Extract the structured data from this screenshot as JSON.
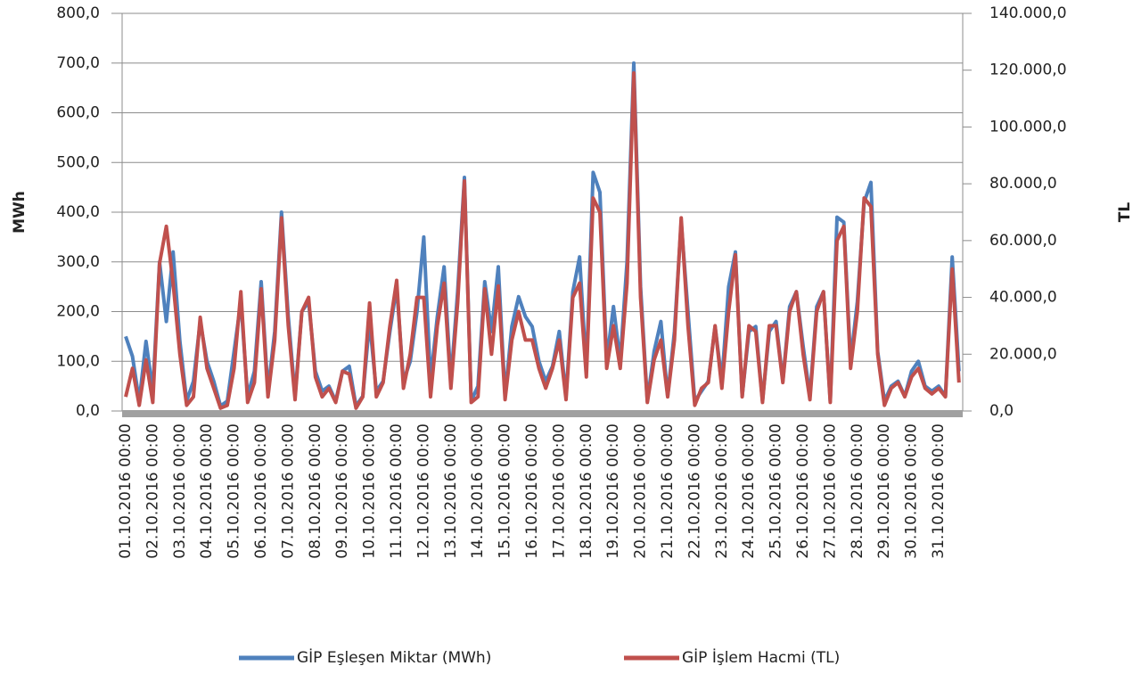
{
  "chart_data": {
    "type": "line",
    "y_label": "MWh",
    "y2_label": "TL",
    "categories": [
      "01.10.2016 00:00",
      null,
      null,
      null,
      "02.10.2016 00:00",
      null,
      null,
      null,
      "03.10.2016 00:00",
      null,
      null,
      null,
      "04.10.2016 00:00",
      null,
      null,
      null,
      "05.10.2016 00:00",
      null,
      null,
      null,
      "06.10.2016 00:00",
      null,
      null,
      null,
      "07.10.2016 00:00",
      null,
      null,
      null,
      "08.10.2016 00:00",
      null,
      null,
      null,
      "09.10.2016 00:00",
      null,
      null,
      null,
      "10.10.2016 00:00",
      null,
      null,
      null,
      "11.10.2016 00:00",
      null,
      null,
      null,
      "12.10.2016 00:00",
      null,
      null,
      null,
      "13.10.2016 00:00",
      null,
      null,
      null,
      "14.10.2016 00:00",
      null,
      null,
      null,
      "15.10.2016 00:00",
      null,
      null,
      null,
      "16.10.2016 00:00",
      null,
      null,
      null,
      "17.10.2016 00:00",
      null,
      null,
      null,
      "18.10.2016 00:00",
      null,
      null,
      null,
      "19.10.2016 00:00",
      null,
      null,
      null,
      "20.10.2016 00:00",
      null,
      null,
      null,
      "21.10.2016 00:00",
      null,
      null,
      null,
      "22.10.2016 00:00",
      null,
      null,
      null,
      "23.10.2016 00:00",
      null,
      null,
      null,
      "24.10.2016 00:00",
      null,
      null,
      null,
      "25.10.2016 00:00",
      null,
      null,
      null,
      "26.10.2016 00:00",
      null,
      null,
      null,
      "27.10.2016 00:00",
      null,
      null,
      null,
      "28.10.2016 00:00",
      null,
      null,
      null,
      "29.10.2016 00:00",
      null,
      null,
      null,
      "30.10.2016 00:00",
      null,
      null,
      null,
      "31.10.2016 00:00",
      null,
      null,
      null
    ],
    "series": [
      {
        "name": "GİP Eşleşen Miktar (MWh)",
        "color": "#4f81bd",
        "values": [
          150,
          110,
          20,
          140,
          40,
          300,
          180,
          320,
          140,
          20,
          60,
          180,
          100,
          60,
          10,
          20,
          120,
          220,
          30,
          80,
          260,
          40,
          160,
          400,
          190,
          30,
          200,
          220,
          80,
          40,
          50,
          20,
          80,
          90,
          10,
          30,
          180,
          40,
          60,
          160,
          250,
          60,
          100,
          200,
          350,
          60,
          190,
          290,
          60,
          240,
          470,
          20,
          50,
          260,
          160,
          290,
          30,
          170,
          230,
          190,
          170,
          100,
          60,
          90,
          160,
          30,
          240,
          310,
          80,
          480,
          440,
          100,
          210,
          100,
          300,
          700,
          250,
          20,
          120,
          180,
          30,
          160,
          380,
          200,
          20,
          40,
          60,
          170,
          60,
          250,
          320,
          30,
          160,
          170,
          20,
          160,
          180,
          60,
          210,
          240,
          130,
          30,
          210,
          240,
          20,
          390,
          380,
          100,
          220,
          420,
          460,
          120,
          20,
          50,
          60,
          30,
          80,
          100,
          50,
          40,
          50,
          30,
          310,
          80
        ]
      },
      {
        "name": "GİP İşlem Hacmi (TL)",
        "color": "#c0504d",
        "axis": "y2",
        "values": [
          5000,
          15000,
          2000,
          18000,
          3000,
          52000,
          65000,
          45000,
          20000,
          2000,
          5000,
          33000,
          15000,
          8000,
          1000,
          2000,
          15000,
          42000,
          3000,
          10000,
          43000,
          5000,
          25000,
          68000,
          30000,
          4000,
          35000,
          40000,
          12000,
          5000,
          8000,
          3000,
          14000,
          13000,
          1000,
          5000,
          38000,
          5000,
          10000,
          30000,
          46000,
          8000,
          20000,
          40000,
          40000,
          5000,
          30000,
          45000,
          8000,
          38000,
          81000,
          3000,
          5000,
          43000,
          20000,
          44000,
          4000,
          25000,
          35000,
          25000,
          25000,
          15000,
          8000,
          15000,
          25000,
          4000,
          40000,
          45000,
          12000,
          75000,
          70000,
          15000,
          30000,
          15000,
          45000,
          119000,
          40000,
          3000,
          18000,
          25000,
          5000,
          25000,
          68000,
          30000,
          2000,
          8000,
          10000,
          30000,
          8000,
          35000,
          55000,
          5000,
          30000,
          28000,
          3000,
          30000,
          30000,
          10000,
          35000,
          42000,
          20000,
          4000,
          35000,
          42000,
          3000,
          60000,
          65000,
          15000,
          35000,
          75000,
          72000,
          20000,
          2000,
          8000,
          10000,
          5000,
          12000,
          15000,
          8000,
          6000,
          8000,
          5000,
          50000,
          10000
        ]
      }
    ],
    "ylim": [
      0,
      800
    ],
    "yticks": [
      {
        "value": 0,
        "label": "0,0"
      },
      {
        "value": 100,
        "label": "100,0"
      },
      {
        "value": 200,
        "label": "200,0"
      },
      {
        "value": 300,
        "label": "300,0"
      },
      {
        "value": 400,
        "label": "400,0"
      },
      {
        "value": 500,
        "label": "500,0"
      },
      {
        "value": 600,
        "label": "600,0"
      },
      {
        "value": 700,
        "label": "700,0"
      },
      {
        "value": 800,
        "label": "800,0"
      }
    ],
    "y2lim": [
      0,
      140000
    ],
    "y2ticks": [
      {
        "value": 0,
        "label": "0,0"
      },
      {
        "value": 20000,
        "label": "20.000,0"
      },
      {
        "value": 40000,
        "label": "40.000,0"
      },
      {
        "value": 60000,
        "label": "60.000,0"
      },
      {
        "value": 80000,
        "label": "80.000,0"
      },
      {
        "value": 100000,
        "label": "100.000,0"
      },
      {
        "value": 120000,
        "label": "120.000,0"
      },
      {
        "value": 140000,
        "label": "140.000,0"
      }
    ],
    "grid": true
  }
}
